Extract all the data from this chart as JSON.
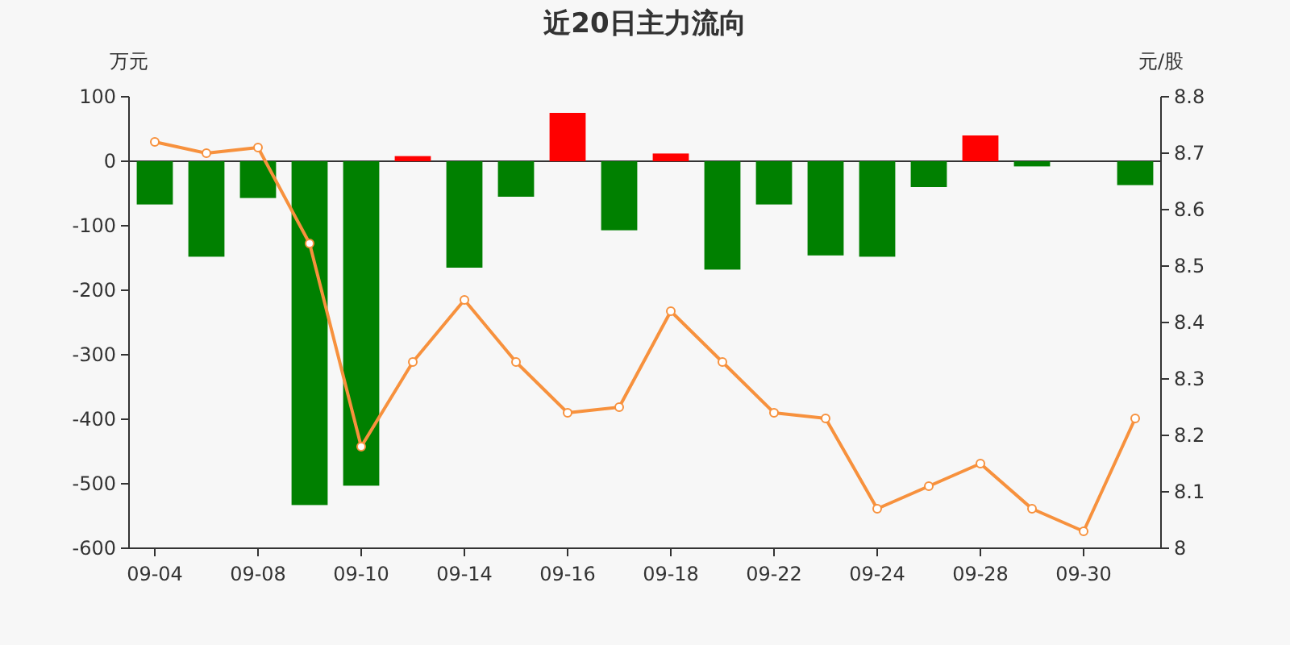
{
  "chart_data": {
    "type": "bar",
    "title": "近20日主力流向",
    "ylabel": "万元",
    "y2label": "元/股",
    "categories": [
      "09-04",
      null,
      "09-08",
      null,
      "09-10",
      null,
      "09-14",
      null,
      "09-16",
      null,
      "09-18",
      null,
      "09-22",
      null,
      "09-24",
      null,
      "09-28",
      null,
      "09-30",
      null
    ],
    "ylim": [
      -600,
      100
    ],
    "yticks": [
      -600,
      -500,
      -400,
      -300,
      -200,
      -100,
      0,
      100
    ],
    "y2lim": [
      8,
      8.8
    ],
    "y2ticks": [
      8,
      8.1,
      8.2,
      8.3,
      8.4,
      8.5,
      8.6,
      8.7,
      8.8
    ],
    "series": [
      {
        "values": [
          -67,
          -148,
          -57,
          -533,
          -503,
          8,
          -165,
          -55,
          75,
          -107,
          12,
          -168,
          -67,
          -146,
          -148,
          -40,
          40,
          -8,
          0,
          -37
        ],
        "colors": [
          "#008000",
          "#008000",
          "#008000",
          "#008000",
          "#008000",
          "#ff0000",
          "#008000",
          "#008000",
          "#ff0000",
          "#008000",
          "#ff0000",
          "#008000",
          "#008000",
          "#008000",
          "#008000",
          "#008000",
          "#ff0000",
          "#008000",
          "#008000",
          "#008000"
        ]
      },
      {
        "type": "line",
        "axis": "y2",
        "color": "#f7913d",
        "marker": "circle",
        "values": [
          8.72,
          8.7,
          8.71,
          8.54,
          8.18,
          8.33,
          8.44,
          8.33,
          8.24,
          8.25,
          8.42,
          8.33,
          8.24,
          8.23,
          8.07,
          8.11,
          8.15,
          8.07,
          8.03,
          8.23
        ]
      }
    ]
  }
}
